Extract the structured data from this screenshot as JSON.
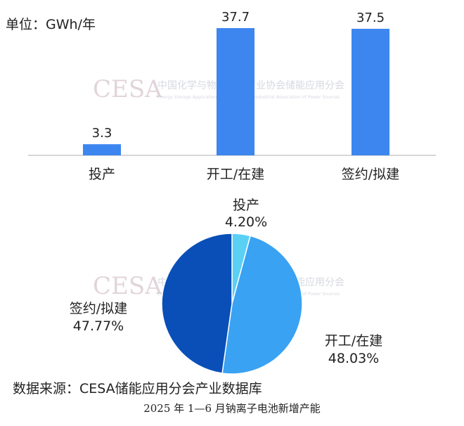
{
  "unit_label": "单位：GWh/年",
  "source_label": "数据来源：CESA储能应用分会产业数据库",
  "caption": "2025 年 1—6 月钠离子电池新增产能",
  "watermark": {
    "logo": "CESA",
    "cn": "中国化学与物理电源行业协会储能应用分会",
    "en": "Energy Storage Application Branch of China Industrial Association of Power Sources"
  },
  "colors": {
    "bar": "#3d86f0",
    "axis": "#bfbfbf",
    "pie_tc": "#5bd0f5",
    "pie_kg": "#3aa2f2",
    "pie_qy": "#0a4fb8"
  },
  "chart_data": [
    {
      "type": "bar",
      "categories": [
        "投产",
        "开工/在建",
        "签约/拟建"
      ],
      "values": [
        3.3,
        37.7,
        37.5
      ],
      "ylim": [
        0,
        40
      ],
      "grid": false,
      "legend": "none"
    },
    {
      "type": "pie",
      "labels": [
        "投产",
        "开工/在建",
        "签约/拟建"
      ],
      "values": [
        4.2,
        48.03,
        47.77
      ],
      "value_labels": [
        "4.20%",
        "48.03%",
        "47.77%"
      ],
      "start_angle_deg": 0,
      "direction": "clockwise"
    }
  ]
}
